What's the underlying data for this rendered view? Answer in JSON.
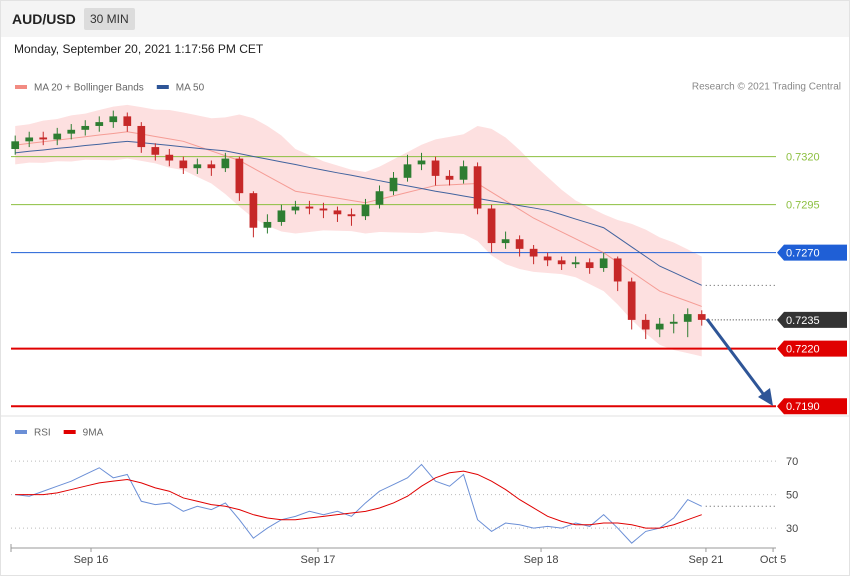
{
  "header": {
    "symbol": "AUD/USD",
    "interval": "30 MIN",
    "timestamp": "Monday, September 20, 2021 1:17:56 PM CET",
    "credit": "Research © 2021 Trading Central"
  },
  "chart_data": [
    {
      "type": "candlestick",
      "xlim": [
        -0.3,
        54.3
      ],
      "ylim": [
        0.7185,
        0.7349
      ],
      "up_color": "#2e7d32",
      "down_color": "#c62828",
      "open": [
        0.7324,
        0.7328,
        0.733,
        0.7329,
        0.7332,
        0.7334,
        0.7336,
        0.7338,
        0.7341,
        0.7336,
        0.7325,
        0.7321,
        0.7318,
        0.7314,
        0.7316,
        0.7314,
        0.7319,
        0.7301,
        0.7283,
        0.7286,
        0.7292,
        0.7294,
        0.7293,
        0.7292,
        0.729,
        0.7289,
        0.7295,
        0.7302,
        0.7309,
        0.7316,
        0.7318,
        0.731,
        0.7308,
        0.7315,
        0.7293,
        0.7275,
        0.7277,
        0.7272,
        0.7268,
        0.7266,
        0.7264,
        0.7265,
        0.7262,
        0.7267,
        0.7255,
        0.7235,
        0.723,
        0.7233,
        0.7234,
        0.7238
      ],
      "high": [
        0.7331,
        0.7333,
        0.7333,
        0.7335,
        0.7337,
        0.7339,
        0.7341,
        0.7344,
        0.7343,
        0.7338,
        0.7327,
        0.7324,
        0.732,
        0.7319,
        0.7318,
        0.7322,
        0.732,
        0.7302,
        0.729,
        0.7295,
        0.7297,
        0.7297,
        0.7296,
        0.7294,
        0.7293,
        0.7298,
        0.7305,
        0.7312,
        0.7321,
        0.7322,
        0.732,
        0.7313,
        0.7318,
        0.7317,
        0.7295,
        0.7281,
        0.7279,
        0.7274,
        0.727,
        0.7268,
        0.7268,
        0.7267,
        0.727,
        0.7268,
        0.7257,
        0.7238,
        0.7236,
        0.7238,
        0.7241,
        0.724
      ],
      "low": [
        0.7321,
        0.7325,
        0.7326,
        0.7326,
        0.7329,
        0.7331,
        0.7333,
        0.7335,
        0.7333,
        0.7322,
        0.7318,
        0.7315,
        0.7311,
        0.7311,
        0.731,
        0.7312,
        0.7297,
        0.7278,
        0.728,
        0.7284,
        0.729,
        0.729,
        0.7288,
        0.7286,
        0.7284,
        0.7287,
        0.7293,
        0.73,
        0.7307,
        0.7313,
        0.7305,
        0.7305,
        0.7306,
        0.729,
        0.727,
        0.7272,
        0.7268,
        0.7264,
        0.7263,
        0.7261,
        0.7262,
        0.7259,
        0.726,
        0.725,
        0.723,
        0.7225,
        0.7226,
        0.7228,
        0.7226,
        0.7232
      ],
      "close": [
        0.7328,
        0.733,
        0.7329,
        0.7332,
        0.7334,
        0.7336,
        0.7338,
        0.7341,
        0.7336,
        0.7325,
        0.7321,
        0.7318,
        0.7314,
        0.7316,
        0.7314,
        0.7319,
        0.7301,
        0.7283,
        0.7286,
        0.7292,
        0.7294,
        0.7293,
        0.7292,
        0.729,
        0.7289,
        0.7295,
        0.7302,
        0.7309,
        0.7316,
        0.7318,
        0.731,
        0.7308,
        0.7315,
        0.7293,
        0.7275,
        0.7277,
        0.7272,
        0.7268,
        0.7266,
        0.7264,
        0.7265,
        0.7262,
        0.7267,
        0.7255,
        0.7235,
        0.723,
        0.7233,
        0.7234,
        0.7238,
        0.7235
      ],
      "series": [
        {
          "name": "MA 20 + Bollinger Bands",
          "color": "#f28b82",
          "band_color": "#fde0e0",
          "values": [
            0.7326,
            0.73269,
            0.73278,
            0.73286,
            0.73295,
            0.73304,
            0.73313,
            0.73321,
            0.7333,
            0.73318,
            0.73305,
            0.73293,
            0.7328,
            0.73255,
            0.7323,
            0.73205,
            0.7318,
            0.7314,
            0.731,
            0.7306,
            0.7302,
            0.73008,
            0.72996,
            0.72984,
            0.72972,
            0.7296,
            0.72978,
            0.72996,
            0.73014,
            0.73032,
            0.7305,
            0.73053,
            0.73057,
            0.7306,
            0.73015,
            0.7297,
            0.72925,
            0.7288,
            0.72844,
            0.72808,
            0.72772,
            0.72736,
            0.727,
            0.7265,
            0.726,
            0.7255,
            0.725,
            0.72473,
            0.72447,
            0.7242
          ],
          "upper": [
            0.7336,
            0.73369,
            0.73388,
            0.73396,
            0.73415,
            0.73424,
            0.73443,
            0.73461,
            0.7347,
            0.73458,
            0.73445,
            0.73443,
            0.7343,
            0.73415,
            0.734,
            0.73405,
            0.7342,
            0.734,
            0.7336,
            0.7331,
            0.7324,
            0.73208,
            0.73176,
            0.73154,
            0.73132,
            0.7312,
            0.73148,
            0.73186,
            0.73224,
            0.73262,
            0.7329,
            0.73303,
            0.73317,
            0.7336,
            0.73345,
            0.733,
            0.73235,
            0.7316,
            0.73094,
            0.73028,
            0.72972,
            0.72936,
            0.729,
            0.7287,
            0.7285,
            0.7282,
            0.7278,
            0.72753,
            0.72717,
            0.7268
          ],
          "lower": [
            0.7316,
            0.73169,
            0.73168,
            0.73176,
            0.73175,
            0.73184,
            0.73183,
            0.73181,
            0.7319,
            0.73178,
            0.73165,
            0.73143,
            0.7313,
            0.73095,
            0.7306,
            0.73005,
            0.7294,
            0.7288,
            0.7284,
            0.7281,
            0.728,
            0.72808,
            0.72816,
            0.72814,
            0.72812,
            0.728,
            0.72808,
            0.72806,
            0.72804,
            0.72802,
            0.7281,
            0.72803,
            0.72797,
            0.7276,
            0.72685,
            0.7264,
            0.72615,
            0.726,
            0.72594,
            0.72588,
            0.72572,
            0.72536,
            0.725,
            0.7243,
            0.7235,
            0.7228,
            0.7222,
            0.72193,
            0.72177,
            0.7216
          ]
        },
        {
          "name": "MA 50",
          "color": "#2e5597",
          "values": [
            0.7322,
            0.73228,
            0.73235,
            0.73243,
            0.7325,
            0.73258,
            0.73265,
            0.73273,
            0.7328,
            0.73273,
            0.73266,
            0.73259,
            0.73251,
            0.73244,
            0.73237,
            0.7323,
            0.73216,
            0.73201,
            0.73187,
            0.73173,
            0.73159,
            0.73144,
            0.7313,
            0.73116,
            0.73103,
            0.73089,
            0.73075,
            0.73061,
            0.73048,
            0.73034,
            0.7302,
            0.73008,
            0.72995,
            0.72983,
            0.7297,
            0.72958,
            0.72945,
            0.72933,
            0.7292,
            0.72898,
            0.72875,
            0.72853,
            0.7283,
            0.7278,
            0.7273,
            0.7268,
            0.7263,
            0.72597,
            0.72563,
            0.7253
          ]
        }
      ],
      "levels": [
        {
          "value": 0.732,
          "label": "0.7320",
          "color": "#8cbf3f",
          "line": "solid",
          "width": 1,
          "box": false
        },
        {
          "value": 0.7295,
          "label": "0.7295",
          "color": "#8cbf3f",
          "line": "solid",
          "width": 1,
          "box": false
        },
        {
          "value": 0.727,
          "label": "0.7270",
          "color": "#1f5fd6",
          "line": "solid",
          "width": 1,
          "box": true
        },
        {
          "value": 0.7235,
          "label": "0.7235",
          "color": "#333333",
          "line": "dotted",
          "width": 1,
          "box": true
        },
        {
          "value": 0.722,
          "label": "0.7220",
          "color": "#e00000",
          "line": "solid",
          "width": 2,
          "box": true
        },
        {
          "value": 0.719,
          "label": "0.7190",
          "color": "#e00000",
          "line": "solid",
          "width": 2,
          "box": true
        }
      ]
    },
    {
      "type": "line",
      "xlim": [
        -0.3,
        54.3
      ],
      "ylim": [
        19,
        79
      ],
      "yticks": [
        70,
        50,
        30
      ],
      "xticks": [
        {
          "value": 5.41,
          "label": "Sep 16"
        },
        {
          "value": 21.61,
          "label": "Sep 17"
        },
        {
          "value": 37.53,
          "label": "Sep 18"
        },
        {
          "value": 49.3,
          "label": "Sep 21"
        },
        {
          "value": 54.09,
          "label": "Oct 5"
        }
      ],
      "series": [
        {
          "name": "RSI",
          "color": "#6b8fd6",
          "values": [
            50,
            49,
            52,
            55,
            58,
            62,
            66,
            60,
            62,
            46,
            44,
            45,
            40,
            43,
            41,
            45,
            35,
            24,
            30,
            35,
            37,
            40,
            38,
            40,
            37,
            45,
            52,
            56,
            60,
            68,
            58,
            55,
            62,
            35,
            28,
            33,
            32,
            30,
            31,
            30,
            33,
            31,
            38,
            30,
            21,
            28,
            30,
            36,
            47,
            43
          ]
        },
        {
          "name": "9MA",
          "color": "#e00000",
          "values": [
            50,
            50,
            50,
            51,
            53,
            55,
            57,
            58,
            59,
            57,
            54,
            52,
            48,
            46,
            44,
            43,
            41,
            38,
            36,
            35,
            35,
            36,
            37,
            38,
            39,
            40,
            42,
            45,
            49,
            55,
            60,
            63,
            64,
            62,
            58,
            53,
            47,
            42,
            37,
            34,
            32,
            32,
            33,
            33,
            32,
            30,
            30,
            32,
            35,
            38
          ]
        }
      ]
    }
  ]
}
